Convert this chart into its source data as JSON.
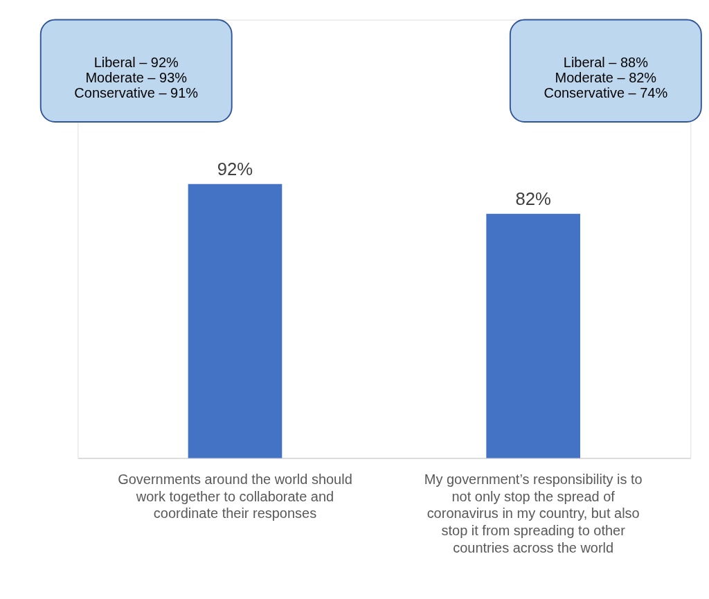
{
  "chart_data": {
    "type": "bar",
    "categories": [
      "Governments around the world should work together to collaborate and coordinate their responses",
      "My government’s responsibility is to not only stop the spread of coronavirus in my country, but also stop it from spreading to other countries across the world"
    ],
    "values": [
      92,
      82
    ],
    "value_labels": [
      "92%",
      "82%"
    ],
    "color": "#4472c4",
    "grid": false,
    "tick_labels": "x",
    "annotations": [
      "Liberal – 92%\nModerate – 93%\nConservative – 91%",
      "Liberal – 88%\nModerate – 82%\nConservative – 74%"
    ]
  }
}
